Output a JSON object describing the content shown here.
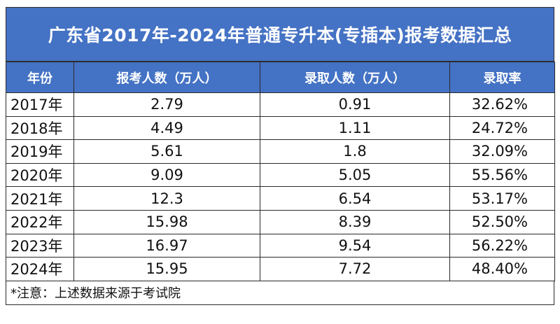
{
  "title": "广东省2017年-2024年普通专升本(专插本)报考数据汇总",
  "headers": [
    "年份",
    "报考人数（万人）",
    "录取人数（万人）",
    "录取率"
  ],
  "rows": [
    {
      "year": "2017年",
      "applicants": "2.79",
      "admitted": "0.91",
      "rate": "32.62%"
    },
    {
      "year": "2018年",
      "applicants": "4.49",
      "admitted": "1.11",
      "rate": "24.72%"
    },
    {
      "year": "2019年",
      "applicants": "5.61",
      "admitted": "1.8",
      "rate": "32.09%"
    },
    {
      "year": "2020年",
      "applicants": "9.09",
      "admitted": "5.05",
      "rate": "55.56%"
    },
    {
      "year": "2021年",
      "applicants": "12.3",
      "admitted": "6.54",
      "rate": "53.17%"
    },
    {
      "year": "2022年",
      "applicants": "15.98",
      "admitted": "8.39",
      "rate": "52.50%"
    },
    {
      "year": "2023年",
      "applicants": "16.97",
      "admitted": "9.54",
      "rate": "56.22%"
    },
    {
      "year": "2024年",
      "applicants": "15.95",
      "admitted": "7.72",
      "rate": "48.40%"
    }
  ],
  "note": "*注意：上述数据来源于考试院",
  "colors": {
    "header_bg": "#4472c4",
    "header_text": "#ffffff",
    "border": "#2a2a2a"
  }
}
